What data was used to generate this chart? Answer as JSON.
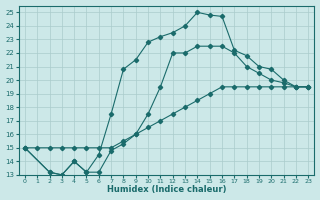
{
  "xlabel": "Humidex (Indice chaleur)",
  "background_color": "#cce8e8",
  "line_color": "#1a6b6b",
  "grid_color": "#aacccc",
  "xlim": [
    -0.5,
    23.5
  ],
  "ylim": [
    13,
    25.5
  ],
  "yticks": [
    13,
    14,
    15,
    16,
    17,
    18,
    19,
    20,
    21,
    22,
    23,
    24,
    25
  ],
  "xticks": [
    0,
    1,
    2,
    3,
    4,
    5,
    6,
    7,
    8,
    9,
    10,
    11,
    12,
    13,
    14,
    15,
    16,
    17,
    18,
    19,
    20,
    21,
    22,
    23
  ],
  "series1_x": [
    0,
    1,
    2,
    3,
    4,
    5,
    6,
    7,
    8,
    9,
    10,
    11,
    12,
    13,
    14,
    15,
    16,
    17,
    18,
    19,
    20,
    21,
    22,
    23
  ],
  "series1_y": [
    15.0,
    15.0,
    15.0,
    15.0,
    15.0,
    15.0,
    15.0,
    15.0,
    15.5,
    16.0,
    16.5,
    17.0,
    17.5,
    18.0,
    18.5,
    19.0,
    19.5,
    19.5,
    19.5,
    19.5,
    19.5,
    19.5,
    19.5,
    19.5
  ],
  "series2_x": [
    0,
    2,
    3,
    4,
    5,
    6,
    7,
    8,
    9,
    10,
    11,
    12,
    13,
    14,
    15,
    16,
    17,
    18,
    19,
    20,
    21,
    22,
    23
  ],
  "series2_y": [
    15.0,
    13.2,
    13.0,
    14.0,
    13.2,
    13.2,
    14.8,
    15.3,
    16.0,
    17.5,
    19.5,
    22.0,
    22.0,
    22.5,
    22.5,
    22.5,
    22.0,
    21.0,
    20.5,
    20.0,
    19.8,
    19.5,
    19.5
  ],
  "series3_x": [
    0,
    2,
    3,
    4,
    5,
    6,
    7,
    8,
    9,
    10,
    11,
    12,
    13,
    14,
    15,
    16,
    17,
    18,
    19,
    20,
    21,
    22,
    23
  ],
  "series3_y": [
    15.0,
    13.2,
    13.0,
    14.0,
    13.2,
    14.5,
    17.5,
    20.8,
    21.5,
    22.8,
    23.2,
    23.5,
    24.0,
    25.0,
    24.8,
    24.7,
    22.2,
    21.8,
    21.0,
    20.8,
    20.0,
    19.5,
    19.5
  ]
}
